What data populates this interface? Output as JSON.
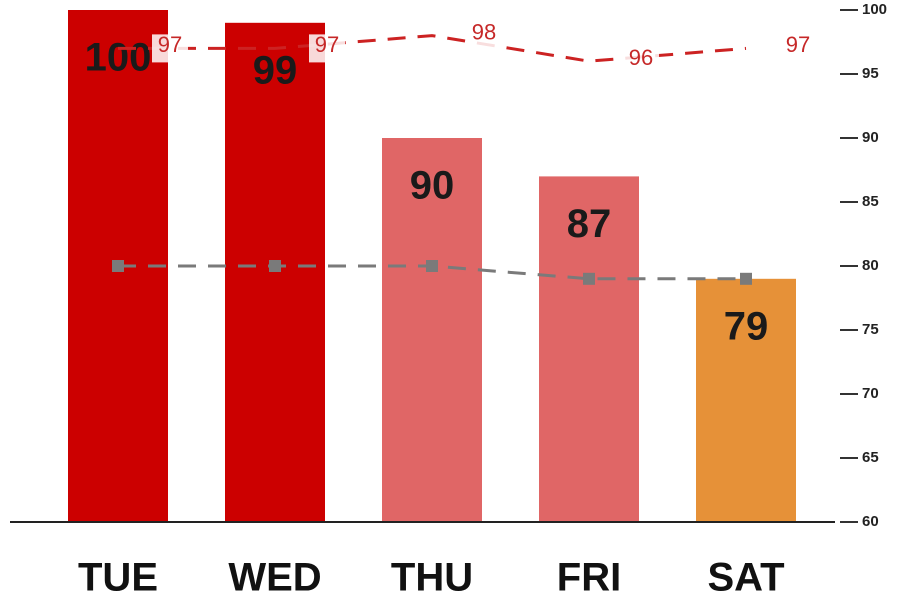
{
  "chart_data": {
    "type": "bar",
    "categories": [
      "TUE",
      "WED",
      "THU",
      "FRI",
      "SAT"
    ],
    "series": [
      {
        "type": "bar",
        "values": [
          100,
          99,
          90,
          87,
          79
        ],
        "colors": [
          "#cc0000",
          "#cc0000",
          "#e06666",
          "#e06666",
          "#e69138"
        ],
        "data_labels": true
      },
      {
        "type": "line",
        "values": [
          97,
          97,
          98,
          96,
          97
        ],
        "color": "#cc2222",
        "dashed": true,
        "markers": false,
        "data_labels": true
      },
      {
        "type": "line",
        "values": [
          80,
          80,
          80,
          79,
          79
        ],
        "color": "#7a7a7a",
        "dashed": true,
        "markers": true,
        "data_labels": false
      }
    ],
    "ylim": [
      60,
      100
    ],
    "yticks": [
      60,
      65,
      70,
      75,
      80,
      85,
      90,
      95,
      100
    ],
    "y_axis_side": "right"
  }
}
